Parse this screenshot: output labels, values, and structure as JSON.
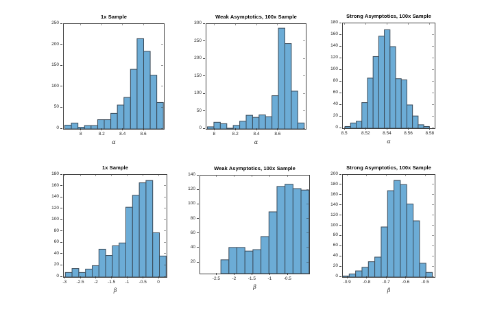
{
  "figure": {
    "background": "#ffffff"
  },
  "colors": {
    "bar_fill": "#6cacd6",
    "bar_edge": "#3a4a58",
    "axis": "#3f3f3f",
    "tick_label": "#262626",
    "title": "#000000"
  },
  "chart_data": [
    {
      "type": "bar",
      "subtype": "histogram",
      "title": "1x Sample",
      "xlabel": "α",
      "xlim": [
        7.83,
        8.79
      ],
      "ylim": [
        0,
        250
      ],
      "yticks": [
        0,
        50,
        100,
        150,
        200,
        250
      ],
      "ytick_labels": [
        "0",
        "50",
        "100",
        "150",
        "200",
        "250"
      ],
      "xtick_values": [
        8,
        8.2,
        8.4,
        8.6
      ],
      "xtick_labels": [
        "8",
        "8.2",
        "8.4",
        "8.6"
      ],
      "bins": {
        "start": 7.84,
        "width": 0.063,
        "counts": [
          9,
          14,
          4,
          8,
          8,
          22,
          22,
          37,
          57,
          75,
          142,
          215,
          185,
          128,
          63
        ]
      }
    },
    {
      "type": "bar",
      "subtype": "histogram",
      "title": "Weak Asymptotics, 100x Sample",
      "xlabel": "α",
      "xlim": [
        7.92,
        8.86
      ],
      "ylim": [
        0,
        300
      ],
      "yticks": [
        0,
        50,
        100,
        150,
        200,
        250,
        300
      ],
      "ytick_labels": [
        "0",
        "50",
        "100",
        "150",
        "200",
        "250",
        "300"
      ],
      "xtick_values": [
        8,
        8.2,
        8.4,
        8.6
      ],
      "xtick_labels": [
        "8",
        "8.2",
        "8.4",
        "8.6"
      ],
      "bins": {
        "start": 7.93,
        "width": 0.061,
        "counts": [
          6,
          19,
          15,
          2,
          10,
          22,
          39,
          33,
          40,
          35,
          95,
          288,
          244,
          108,
          17
        ]
      }
    },
    {
      "type": "bar",
      "subtype": "histogram",
      "title": "Strong Asymptotics, 100x Sample",
      "xlabel": "α",
      "xlim": [
        8.498,
        8.584
      ],
      "ylim": [
        0,
        180
      ],
      "yticks": [
        0,
        20,
        40,
        60,
        80,
        100,
        120,
        140,
        160,
        180
      ],
      "ytick_labels": [
        "0",
        "20",
        "40",
        "60",
        "80",
        "100",
        "120",
        "140",
        "160",
        "180"
      ],
      "xtick_values": [
        8.5,
        8.52,
        8.54,
        8.56,
        8.58
      ],
      "xtick_labels": [
        "8.5",
        "8.52",
        "8.54",
        "8.56",
        "8.58"
      ],
      "bins": {
        "start": 8.5,
        "width": 0.00527,
        "counts": [
          3,
          9,
          12,
          44,
          86,
          123,
          158,
          169,
          140,
          85,
          83,
          40,
          21,
          6,
          3
        ]
      }
    },
    {
      "type": "bar",
      "subtype": "histogram",
      "title": "1x Sample",
      "xlabel": "β",
      "xlim": [
        -3.05,
        0.24
      ],
      "ylim": [
        0,
        180
      ],
      "yticks": [
        0,
        20,
        40,
        60,
        80,
        100,
        120,
        140,
        160,
        180
      ],
      "ytick_labels": [
        "0",
        "20",
        "40",
        "60",
        "80",
        "100",
        "120",
        "140",
        "160",
        "180"
      ],
      "xtick_values": [
        -3,
        -2.5,
        -2,
        -1.5,
        -1,
        -0.5,
        0
      ],
      "xtick_labels": [
        "-3",
        "-2.5",
        "-2",
        "-1.5",
        "-1",
        "-0.5",
        "0"
      ],
      "bins": {
        "start": -3.0,
        "width": 0.215,
        "counts": [
          8,
          15,
          8,
          14,
          20,
          49,
          38,
          55,
          60,
          123,
          144,
          166,
          170,
          78,
          37
        ]
      }
    },
    {
      "type": "bar",
      "subtype": "histogram",
      "title": "Weak Asymptotics, 100x Sample",
      "xlabel": "β",
      "xlim": [
        -2.97,
        0.09
      ],
      "ylim": [
        5,
        140
      ],
      "yticks": [
        20,
        40,
        60,
        80,
        100,
        120,
        140
      ],
      "ytick_labels": [
        "20",
        "40",
        "60",
        "80",
        "100",
        "120",
        "140"
      ],
      "xtick_values": [
        -2.5,
        -2,
        -1.5,
        -1,
        -0.5
      ],
      "xtick_labels": [
        "-2.5",
        "-2",
        "-1.5",
        "-1",
        "-0.5"
      ],
      "bins": {
        "start": -2.39,
        "width": 0.225,
        "counts": [
          24,
          41,
          41,
          36,
          38,
          56,
          90,
          125,
          128,
          122,
          120
        ]
      }
    },
    {
      "type": "bar",
      "subtype": "histogram",
      "title": "Strong Asymptotics, 100x Sample",
      "xlabel": "β",
      "xlim": [
        -0.925,
        -0.455
      ],
      "ylim": [
        0,
        200
      ],
      "yticks": [
        0,
        20,
        40,
        60,
        80,
        100,
        120,
        140,
        160,
        180,
        200
      ],
      "ytick_labels": [
        "0",
        "20",
        "40",
        "60",
        "80",
        "100",
        "120",
        "140",
        "160",
        "180",
        "200"
      ],
      "xtick_values": [
        -0.9,
        -0.8,
        -0.7,
        -0.6,
        -0.5
      ],
      "xtick_labels": [
        "-0.9",
        "-0.8",
        "-0.7",
        "-0.6",
        "-0.5"
      ],
      "bins": {
        "start": -0.925,
        "width": 0.0327,
        "counts": [
          2,
          6,
          12,
          19,
          30,
          39,
          98,
          169,
          189,
          181,
          143,
          110,
          27,
          9
        ]
      }
    }
  ]
}
